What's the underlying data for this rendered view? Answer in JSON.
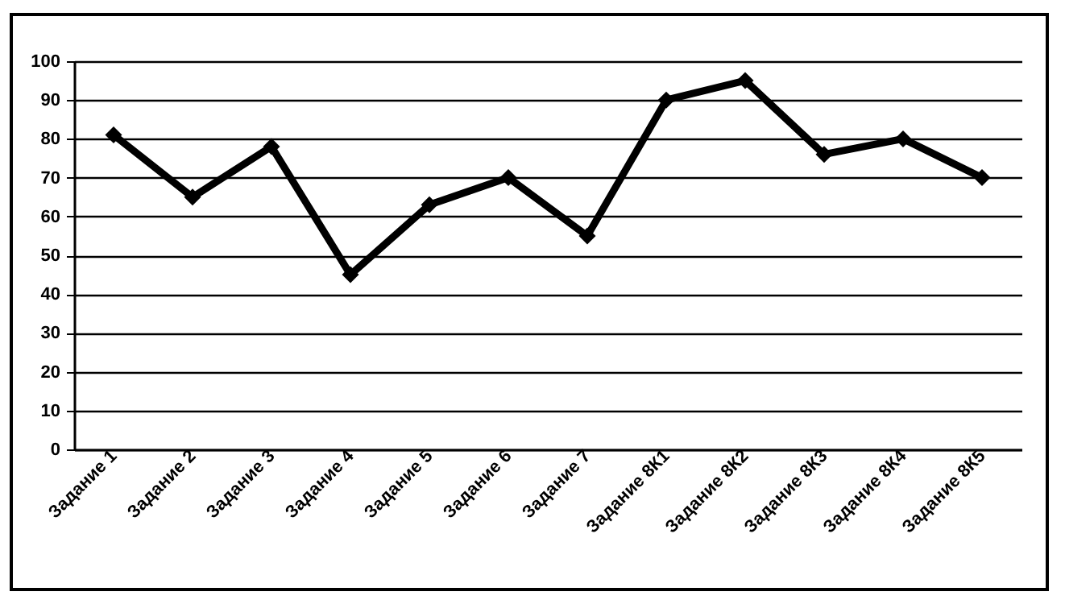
{
  "chart_data": {
    "type": "line",
    "categories": [
      "Задание 1",
      "Задание 2",
      "Задание 3",
      "Задание 4",
      "Задание 5",
      "Задание 6",
      "Задание 7",
      "Задание 8К1",
      "Задание 8К2",
      "Задание 8К3",
      "Задание 8К4",
      "Задание 8К5"
    ],
    "series": [
      {
        "color": "#000000",
        "values": [
          81,
          65,
          78,
          45,
          63,
          70,
          55,
          90,
          95,
          76,
          80,
          70
        ]
      }
    ],
    "ylim": [
      0,
      100
    ],
    "yticks": [
      0,
      10,
      20,
      30,
      40,
      50,
      60,
      70,
      80,
      90,
      100
    ],
    "grid": "y",
    "marker": "diamond",
    "line_style": "solid",
    "legend": false
  }
}
